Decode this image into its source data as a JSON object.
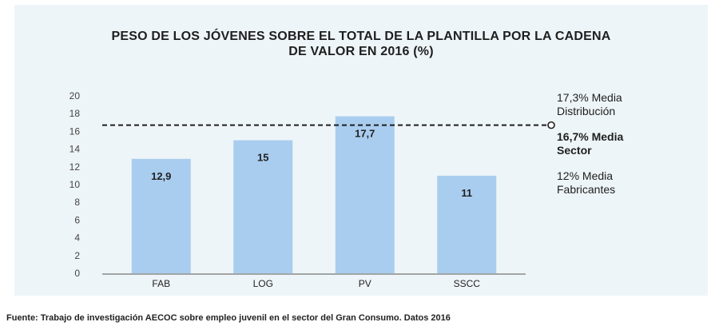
{
  "title_line1": "PESO DE LOS JÓVENES SOBRE EL TOTAL DE LA PLANTILLA POR LA CADENA",
  "title_line2": "DE VALOR EN 2016 (%)",
  "source": "Fuente: Trabajo de investigación AECOC sobre empleo juvenil en el sector del Gran Consumo. Datos 2016",
  "annotations": {
    "distribucion_line1": "17,3% Media",
    "distribucion_line2": "Distribución",
    "sector_line1": "16,7% Media",
    "sector_line2": "Sector",
    "fabricantes_line1": "12% Media",
    "fabricantes_line2": "Fabricantes"
  },
  "colors": {
    "bar": "#a9cdef",
    "panel": "#eef5f8",
    "text": "#1e1e1e"
  },
  "chart_data": {
    "type": "bar",
    "categories": [
      "FAB",
      "LOG",
      "PV",
      "SSCC"
    ],
    "values": [
      12.9,
      15,
      17.7,
      11
    ],
    "value_labels": [
      "12,9",
      "15",
      "17,7",
      "11"
    ],
    "ylim": [
      0,
      20
    ],
    "yticks": [
      0,
      2,
      4,
      6,
      8,
      10,
      12,
      14,
      16,
      18,
      20
    ],
    "reference_line": {
      "value": 16.7,
      "style": "dashed",
      "label": "16,7% Media Sector"
    },
    "grid": false,
    "legend": "none"
  }
}
